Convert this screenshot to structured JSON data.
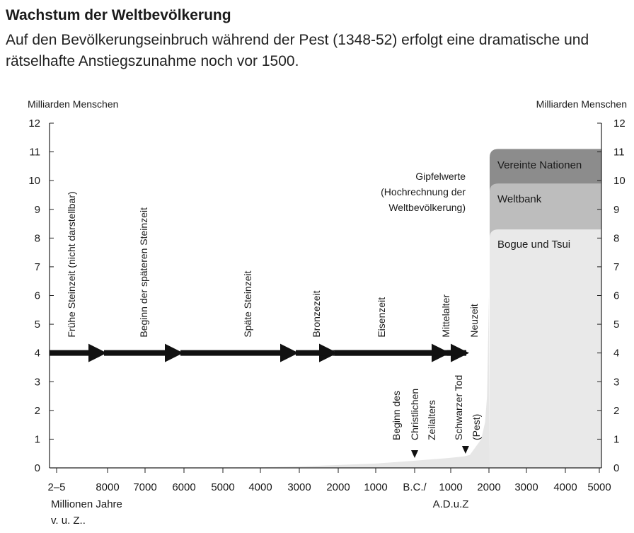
{
  "header": {
    "title": "Wachstum der Weltbevölkerung",
    "subtitle": "Auf den Bevölkerungseinbruch während der Pest (1348-52) erfolgt eine dramatische und rätselhafte Anstiegszunahme noch vor 1500."
  },
  "chart_data": {
    "type": "area",
    "ylabel_left": "Milliarden Menschen",
    "ylabel_right": "Milliarden Menschen",
    "ylim": [
      0,
      12
    ],
    "y_ticks": [
      0,
      1,
      2,
      3,
      4,
      5,
      6,
      7,
      8,
      9,
      10,
      11,
      12
    ],
    "x_tick_labels": [
      "2–5",
      "8000",
      "7000",
      "6000",
      "5000",
      "4000",
      "3000",
      "2000",
      "1000",
      "B.C./",
      "1000",
      "2000",
      "3000",
      "4000",
      "5000"
    ],
    "x_caption_left": [
      "Millionen Jahre",
      "v. u. Z.."
    ],
    "x_caption_right": "A.D.u.Z",
    "colors": {
      "un": "#8c8c8c",
      "worldbank": "#bdbdbd",
      "bogue": "#e9e9e9",
      "history": "#e6e6e6",
      "arrow": "#111111"
    },
    "series": [
      {
        "name": "Vereinte Nationen",
        "peak": 11.1
      },
      {
        "name": "Weltbank",
        "peak": 9.9
      },
      {
        "name": "Bogue und Tsui",
        "peak": 8.3
      }
    ],
    "history": {
      "x": [
        "2–5",
        "8000",
        "7000",
        "6000",
        "5000",
        "4000",
        "3000",
        "2000",
        "1000",
        "B.C./",
        "1000",
        "1350",
        "1500",
        "1800",
        "1900",
        "1950",
        "2000"
      ],
      "y": [
        0.0,
        0.005,
        0.007,
        0.01,
        0.015,
        0.02,
        0.05,
        0.1,
        0.15,
        0.25,
        0.35,
        0.4,
        0.45,
        1.0,
        1.6,
        2.5,
        6.0
      ]
    },
    "peak_note": [
      "Gipfelwerte",
      "(Hochrechnung der",
      "Weltbevölkerung)"
    ],
    "eras": [
      {
        "label": "Frühe Steinzeit (nicht darstellbar)",
        "from": "2–5",
        "to": "8000"
      },
      {
        "label": "Beginn der späteren Steinzeit",
        "from": "8000",
        "to": "6000"
      },
      {
        "label": "Späte Steinzeit",
        "from": "6000",
        "to": "3000"
      },
      {
        "label": "Bronzezeit",
        "from": "3000",
        "to": "2000"
      },
      {
        "label": "Eisenzeit",
        "from": "2000",
        "to": "1000 AD"
      },
      {
        "label": "Mittelalter",
        "from": "1000 AD",
        "to": "1500"
      },
      {
        "label": "Neuzeit",
        "from": "1500",
        "to": "2000"
      }
    ],
    "annotations": [
      {
        "lines": [
          "Beginn des",
          "Christlichen",
          "Zeilalters"
        ],
        "at": "B.C./"
      },
      {
        "lines": [
          "Schwarzer Tod",
          "(Pest)"
        ],
        "at": 1350
      }
    ],
    "era_arrow_level": 4
  }
}
